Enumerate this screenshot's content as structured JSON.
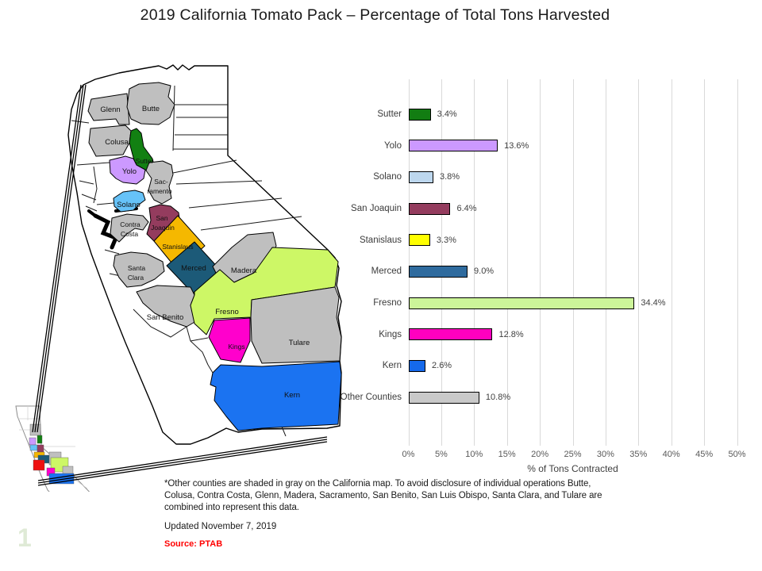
{
  "title": "2019 California Tomato Pack – Percentage of Total Tons Harvested",
  "page_number": "1",
  "chart_data": {
    "type": "bar",
    "orientation": "horizontal",
    "categories": [
      "Sutter",
      "Yolo",
      "Solano",
      "San Joaquin",
      "Stanislaus",
      "Merced",
      "Fresno",
      "Kings",
      "Kern",
      "Other Counties"
    ],
    "values": [
      3.4,
      13.6,
      3.8,
      6.4,
      3.3,
      9.0,
      34.4,
      12.8,
      2.6,
      10.8
    ],
    "value_labels": [
      "3.4%",
      "13.6%",
      "3.8%",
      "6.4%",
      "3.3%",
      "9.0%",
      "34.4%",
      "12.8%",
      "2.6%",
      "10.8%"
    ],
    "bar_colors": [
      "#127d12",
      "#cc99ff",
      "#bdd7ee",
      "#943c5e",
      "#ffff00",
      "#2f6b9e",
      "#ccf599",
      "#ff00bf",
      "#1569eb",
      "#c9c9c9"
    ],
    "bar_border_color": "#000000",
    "xlabel": "% of Tons Contracted",
    "x_ticks": [
      "0%",
      "5%",
      "10%",
      "15%",
      "20%",
      "25%",
      "30%",
      "35%",
      "40%",
      "45%",
      "50%"
    ],
    "xlim": [
      0,
      50
    ],
    "grid": true,
    "gridline_color": "#d9d9d9",
    "legend": false
  },
  "map": {
    "counties": [
      {
        "name": "Glenn",
        "label": "Glenn",
        "color": "#bfbfbf"
      },
      {
        "name": "Butte",
        "label": "Butte",
        "color": "#bfbfbf"
      },
      {
        "name": "Colusa",
        "label": "Colusa",
        "color": "#bfbfbf"
      },
      {
        "name": "Sutter",
        "label": "Sutter",
        "color": "#128012"
      },
      {
        "name": "Yolo",
        "label": "Yolo",
        "color": "#cc99ff"
      },
      {
        "name": "Sacramento",
        "label": "Sac-",
        "label2": "ramento",
        "color": "#bfbfbf"
      },
      {
        "name": "Solano",
        "label": "Solano",
        "color": "#66c2f8"
      },
      {
        "name": "Contra Costa",
        "label": "Contra",
        "label2": "Costa",
        "color": "#bfbfbf"
      },
      {
        "name": "San Joaquin",
        "label": "San",
        "label2": "Joaquin",
        "color": "#943c5e"
      },
      {
        "name": "Stanislaus",
        "label": "Stanislaus",
        "color": "#f5b800"
      },
      {
        "name": "Merced",
        "label": "Merced",
        "color": "#1c5a78"
      },
      {
        "name": "Santa Clara",
        "label": "Santa",
        "label2": "Clara",
        "color": "#bfbfbf"
      },
      {
        "name": "Madera",
        "label": "Madera",
        "color": "#bfbfbf"
      },
      {
        "name": "San Benito",
        "label": "San Benito",
        "color": "#bfbfbf"
      },
      {
        "name": "Fresno",
        "label": "Fresno",
        "color": "#cdf766"
      },
      {
        "name": "Kings",
        "label": "Kings",
        "color": "#ff00cc"
      },
      {
        "name": "Tulare",
        "label": "Tulare",
        "color": "#bfbfbf"
      },
      {
        "name": "Kern",
        "label": "Kern",
        "color": "#1b73f1"
      }
    ],
    "inset_patches": [
      {
        "name": "inset-gray-north",
        "color": "#bfbfbf"
      },
      {
        "name": "inset-green",
        "color": "#128012"
      },
      {
        "name": "inset-violet",
        "color": "#cc99ff"
      },
      {
        "name": "inset-lightblue",
        "color": "#66c2f8"
      },
      {
        "name": "inset-maroon",
        "color": "#943c5e"
      },
      {
        "name": "inset-gold",
        "color": "#f5b800"
      },
      {
        "name": "inset-teal",
        "color": "#1c5a78"
      },
      {
        "name": "inset-gray-madera",
        "color": "#bfbfbf"
      },
      {
        "name": "inset-lightgreen",
        "color": "#cdf766"
      },
      {
        "name": "inset-red",
        "color": "#ee1111"
      },
      {
        "name": "inset-magenta",
        "color": "#ff00cc"
      },
      {
        "name": "inset-gray-tulare",
        "color": "#bfbfbf"
      },
      {
        "name": "inset-blue-kern",
        "color": "#1b73f1"
      }
    ]
  },
  "notes": {
    "footnote_lines": [
      "*Other counties are shaded in gray on the California map.  To avoid disclosure of individual operations Butte,",
      "Colusa, Contra Costa, Glenn, Madera, Sacramento, San Benito, San Luis Obispo, Santa Clara, and Tulare are",
      "combined into represent this data."
    ],
    "updated": "Updated November 7, 2019",
    "source": "Source:  PTAB"
  }
}
